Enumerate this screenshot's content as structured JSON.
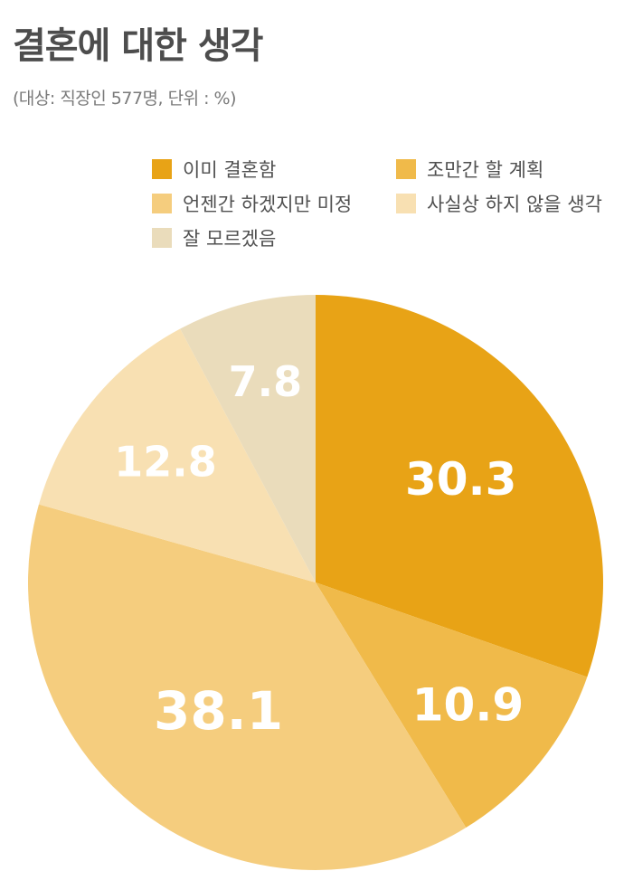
{
  "title": "결혼에 대한 생각",
  "subtitle": "(대상: 직장인 577명, 단위 : %)",
  "chart_data": {
    "type": "pie",
    "title": "결혼에 대한 생각",
    "subtitle": "(대상: 직장인 577명, 단위 : %)",
    "legend_position": "top",
    "slices": [
      {
        "label": "이미 결혼함",
        "value": 30.3,
        "value_label": "30.3",
        "color": "#E8A316"
      },
      {
        "label": "조만간 할 계획",
        "value": 10.9,
        "value_label": "10.9",
        "color": "#F0BA4A"
      },
      {
        "label": "언젠간 하겠지만 미정",
        "value": 38.1,
        "value_label": "38.1",
        "color": "#F5CD7E"
      },
      {
        "label": "사실상 하지 않을 생각",
        "value": 12.8,
        "value_label": "12.8",
        "color": "#F8E0B2"
      },
      {
        "label": "잘 모르겠음",
        "value": 7.8,
        "value_label": "7.8",
        "color": "#EADCBB"
      }
    ]
  }
}
